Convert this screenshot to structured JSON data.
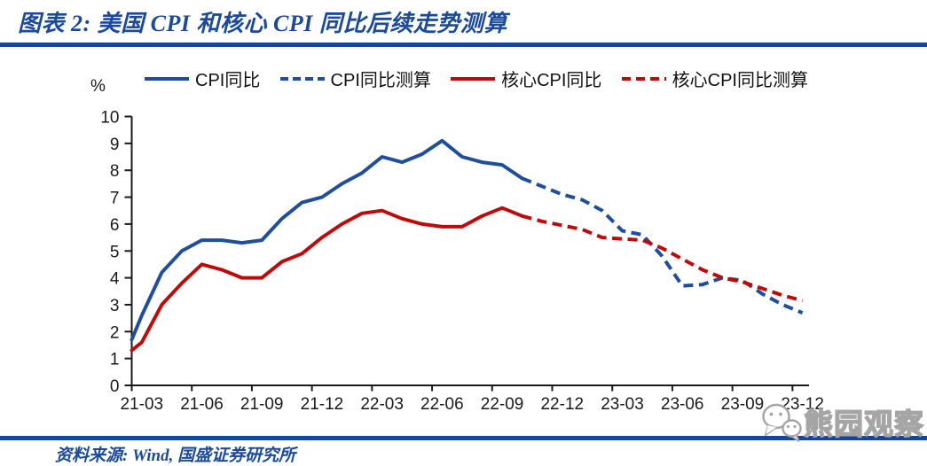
{
  "title": "图表 2:  美国 CPI 和核心 CPI 同比后续走势测算",
  "y_axis": {
    "unit_label": "%"
  },
  "legend": {
    "items": [
      {
        "label": "CPI同比",
        "color": "#1f4e9e",
        "style": "solid"
      },
      {
        "label": "CPI同比测算",
        "color": "#1f4e9e",
        "style": "dashed"
      },
      {
        "label": "核心CPI同比",
        "color": "#c00a0a",
        "style": "solid"
      },
      {
        "label": "核心CPI同比测算",
        "color": "#c00a0a",
        "style": "dashed"
      }
    ]
  },
  "footer": {
    "source_text": "资料来源: Wind, 国盛证券研究所"
  },
  "watermark": {
    "text": "熊园观察",
    "icon": "wechat-bubbles-icon"
  },
  "colors": {
    "accent_blue": "#15459c",
    "title_blue": "#1b4a9b",
    "line_blue": "#1f4e9e",
    "line_red": "#c00a0a",
    "axis": "#1a1a1a",
    "watermark_gray": "#a5a5a5"
  },
  "chart_data": {
    "type": "line",
    "title": "美国CPI和核心CPI同比后续走势测算",
    "xlabel": "",
    "ylabel": "%",
    "ylim": [
      0,
      10
    ],
    "ytick_step": 1,
    "grid": false,
    "legend_position": "top",
    "x_tick_labels": [
      "21-03",
      "21-06",
      "21-09",
      "21-12",
      "22-03",
      "22-06",
      "22-09",
      "22-12",
      "23-03",
      "23-06",
      "23-09",
      "23-12"
    ],
    "x_categories": [
      "21-02",
      "21-03",
      "21-04",
      "21-05",
      "21-06",
      "21-07",
      "21-08",
      "21-09",
      "21-10",
      "21-11",
      "21-12",
      "22-01",
      "22-02",
      "22-03",
      "22-04",
      "22-05",
      "22-06",
      "22-07",
      "22-08",
      "22-09",
      "22-10",
      "22-11",
      "22-12",
      "23-01",
      "23-02",
      "23-03",
      "23-04",
      "23-05",
      "23-06",
      "23-07",
      "23-08",
      "23-09",
      "23-10",
      "23-11",
      "23-12"
    ],
    "series": [
      {
        "name": "CPI同比",
        "data_name": "cpi-yoy-line",
        "color": "#1f4e9e",
        "style": "solid",
        "values": [
          1.7,
          2.6,
          4.2,
          5.0,
          5.4,
          5.4,
          5.3,
          5.4,
          6.2,
          6.8,
          7.0,
          7.5,
          7.9,
          8.5,
          8.3,
          8.6,
          9.1,
          8.5,
          8.3,
          8.2,
          7.7,
          null,
          null,
          null,
          null,
          null,
          null,
          null,
          null,
          null,
          null,
          null,
          null,
          null,
          null
        ]
      },
      {
        "name": "CPI同比测算",
        "data_name": "cpi-yoy-forecast-line",
        "color": "#1f4e9e",
        "style": "dashed",
        "values": [
          null,
          null,
          null,
          null,
          null,
          null,
          null,
          null,
          null,
          null,
          null,
          null,
          null,
          null,
          null,
          null,
          null,
          null,
          null,
          null,
          7.7,
          7.4,
          7.1,
          6.9,
          6.5,
          5.75,
          5.6,
          4.8,
          3.7,
          3.75,
          4.0,
          3.9,
          3.4,
          3.0,
          2.7
        ]
      },
      {
        "name": "核心CPI同比",
        "data_name": "core-cpi-yoy-line",
        "color": "#c00a0a",
        "style": "solid",
        "values": [
          1.3,
          1.6,
          3.0,
          3.8,
          4.5,
          4.3,
          4.0,
          4.0,
          4.6,
          4.9,
          5.5,
          6.0,
          6.4,
          6.5,
          6.2,
          6.0,
          5.9,
          5.9,
          6.3,
          6.6,
          6.3,
          null,
          null,
          null,
          null,
          null,
          null,
          null,
          null,
          null,
          null,
          null,
          null,
          null,
          null
        ]
      },
      {
        "name": "核心CPI同比测算",
        "data_name": "core-cpi-yoy-forecast-line",
        "color": "#c00a0a",
        "style": "dashed",
        "values": [
          null,
          null,
          null,
          null,
          null,
          null,
          null,
          null,
          null,
          null,
          null,
          null,
          null,
          null,
          null,
          null,
          null,
          null,
          null,
          null,
          6.3,
          6.1,
          5.95,
          5.8,
          5.5,
          5.45,
          5.4,
          5.1,
          4.7,
          4.3,
          4.0,
          3.85,
          3.6,
          3.35,
          3.15
        ]
      }
    ]
  }
}
